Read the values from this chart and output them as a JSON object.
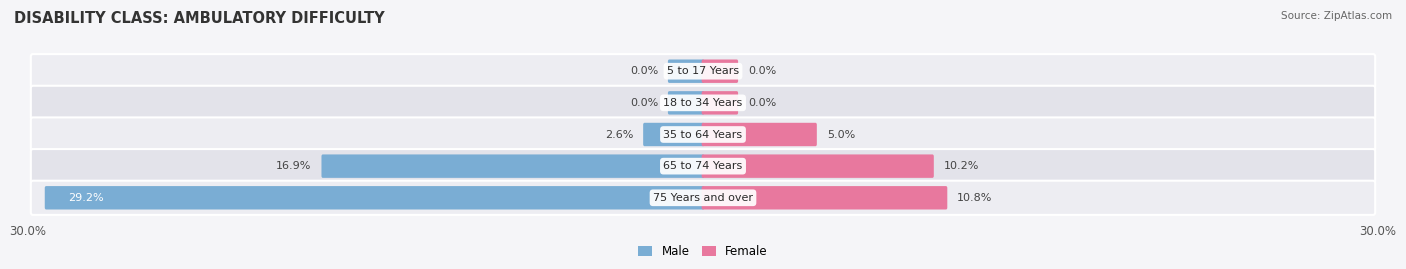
{
  "title": "DISABILITY CLASS: AMBULATORY DIFFICULTY",
  "source": "Source: ZipAtlas.com",
  "categories": [
    "5 to 17 Years",
    "18 to 34 Years",
    "35 to 64 Years",
    "65 to 74 Years",
    "75 Years and over"
  ],
  "male_values": [
    0.0,
    0.0,
    2.6,
    16.9,
    29.2
  ],
  "female_values": [
    0.0,
    0.0,
    5.0,
    10.2,
    10.8
  ],
  "male_color": "#7aadd4",
  "female_color": "#e8789e",
  "row_bg_light": "#ededf2",
  "row_bg_dark": "#e3e3ea",
  "x_max": 30.0,
  "legend_male": "Male",
  "legend_female": "Female",
  "title_fontsize": 10.5,
  "tick_fontsize": 8.5,
  "bar_label_fontsize": 8,
  "cat_label_fontsize": 8,
  "min_bar_display": 1.5,
  "fig_bg": "#f5f5f8"
}
